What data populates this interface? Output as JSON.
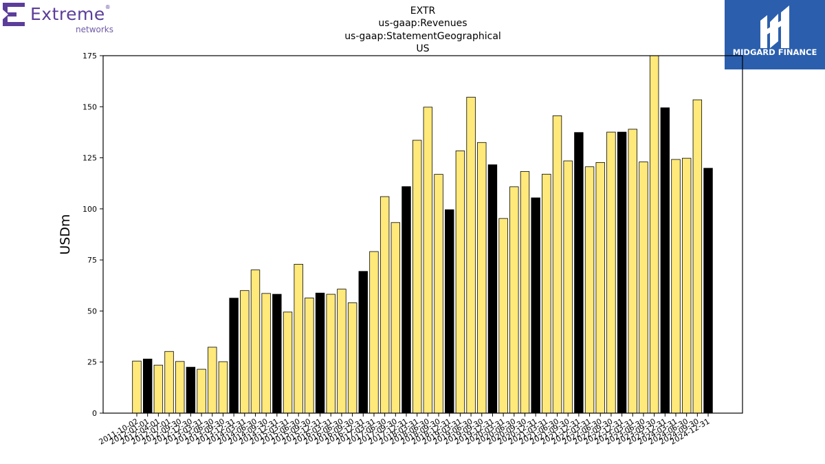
{
  "branding": {
    "left_logo_text": "Extreme",
    "left_logo_subtext": "networks",
    "left_logo_reg": "®",
    "right_logo_text": "MIDGARD FINANCE",
    "left_logo_color": "#5b3d9a",
    "right_logo_bg": "#2b5fad"
  },
  "chart_data": {
    "type": "bar",
    "title_lines": [
      "EXTR",
      "us-gaap:Revenues",
      "us-gaap:StatementGeographical",
      "US"
    ],
    "xlabel": "",
    "ylabel": "USDm",
    "ylim": [
      0,
      175
    ],
    "yticks": [
      0,
      25,
      50,
      75,
      100,
      125,
      150,
      175
    ],
    "grid": false,
    "legend": "none",
    "colors": {
      "quarter": "#ffe97a",
      "fiscal_year_end": "#000000",
      "edge": "#000000"
    },
    "categories": [
      "2011-10-02",
      "2012-01-01",
      "2012-04-01",
      "2012-07-01",
      "2012-09-30",
      "2012-12-30",
      "2013-03-31",
      "2013-06-30",
      "2013-09-30",
      "2013-12-31",
      "2014-03-31",
      "2014-06-30",
      "2014-09-30",
      "2014-12-31",
      "2015-03-31",
      "2015-06-30",
      "2015-09-30",
      "2015-12-31",
      "2016-03-31",
      "2016-06-30",
      "2016-09-30",
      "2016-12-31",
      "2017-03-31",
      "2017-06-30",
      "2017-09-30",
      "2017-12-31",
      "2018-03-31",
      "2018-06-30",
      "2018-09-30",
      "2018-12-31",
      "2019-03-31",
      "2019-06-30",
      "2019-09-30",
      "2019-12-31",
      "2020-03-31",
      "2020-06-30",
      "2020-09-30",
      "2020-12-31",
      "2021-03-31",
      "2021-06-30",
      "2021-09-30",
      "2021-12-31",
      "2022-03-31",
      "2022-06-30",
      "2022-09-30",
      "2022-12-31",
      "2023-03-31",
      "2023-06-30",
      "2023-09-30",
      "2023-12-31",
      "2024-03-31",
      "2024-06-30",
      "2024-09-30",
      "2024-12-31"
    ],
    "values": [
      25.5,
      26.5,
      23.5,
      30.2,
      25.3,
      22.5,
      21.5,
      32.3,
      25.2,
      56.3,
      60.0,
      70.1,
      58.6,
      58.2,
      49.5,
      72.9,
      56.4,
      58.8,
      58.2,
      60.7,
      54.0,
      69.4,
      79.1,
      106.0,
      93.3,
      110.9,
      133.6,
      149.8,
      116.9,
      99.6,
      128.4,
      154.7,
      132.5,
      121.6,
      95.3,
      110.8,
      118.3,
      105.4,
      117.0,
      145.6,
      123.5,
      137.4,
      120.6,
      122.7,
      137.6,
      137.6,
      139.0,
      123.0,
      182.0,
      149.5,
      124.2,
      124.8,
      153.4,
      119.9
    ],
    "dark_bar_indices": [
      1,
      5,
      9,
      13,
      17,
      21,
      25,
      29,
      33,
      37,
      41,
      45,
      49,
      53
    ]
  }
}
